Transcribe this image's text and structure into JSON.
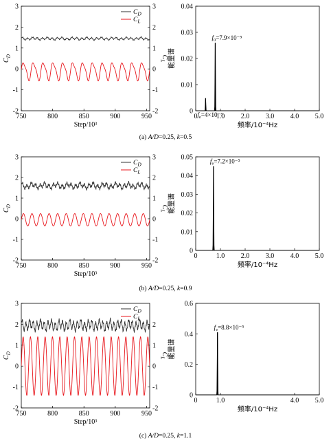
{
  "chart_data": [
    {
      "panel": "a",
      "caption": "(a) A/D=0.25, k=0.5",
      "time_plot": {
        "type": "line",
        "xlabel": "Step/10³",
        "ylabel_left": "C_D",
        "ylabel_right": "C_L",
        "xlim": [
          750,
          955
        ],
        "ylim": [
          -2,
          3
        ],
        "xticks": [
          "750",
          "800",
          "850",
          "900",
          "950"
        ],
        "yticks_left": [
          "-2",
          "-1",
          "0",
          "1",
          "2",
          "3"
        ],
        "yticks_right": [
          "-2",
          "-1",
          "0",
          "1",
          "2",
          "3"
        ],
        "legend": "top-right",
        "series": [
          {
            "name": "C_D",
            "color": "#333333",
            "mean": 1.45,
            "amplitude": 0.05,
            "periods": 26,
            "noise": 0.03
          },
          {
            "name": "C_L",
            "color": "#e8151b",
            "mean": -0.1,
            "amplitude": 0.4,
            "periods": 13,
            "second_amp": 0.1
          }
        ]
      },
      "spectrum": {
        "type": "line",
        "xlabel": "频率/10⁻⁴Hz",
        "ylabel": "能量谱",
        "xlim": [
          0,
          5
        ],
        "ylim": [
          0,
          0.04
        ],
        "xticks": [
          "0",
          "1.0",
          "2.0",
          "3.0",
          "4.0",
          "5.0"
        ],
        "yticks": [
          "0",
          "0.01",
          "0.02",
          "0.03",
          "0.04"
        ],
        "peaks": [
          {
            "x": 0.4,
            "y": 0.0048
          },
          {
            "x": 0.79,
            "y": 0.026
          }
        ],
        "annotations": [
          {
            "sub": "0",
            "text": "=7.9×10⁻⁵",
            "x": 0.79,
            "y": 0.026
          },
          {
            "sub": "e",
            "text": "=4×10⁻⁵",
            "x": 0.4,
            "y": 0.0
          }
        ],
        "color": "#000000"
      }
    },
    {
      "panel": "b",
      "caption": "(b) A/D=0.25, k=0.9",
      "time_plot": {
        "type": "line",
        "xlabel": "Step/10³",
        "ylabel_left": "C_D",
        "ylabel_right": "C_L",
        "xlim": [
          750,
          955
        ],
        "ylim": [
          -2,
          3
        ],
        "xticks": [
          "750",
          "800",
          "850",
          "900",
          "950"
        ],
        "yticks_left": [
          "-2",
          "-1",
          "0",
          "1",
          "2",
          "3"
        ],
        "yticks_right": [
          "-2",
          "-1",
          "0",
          "1",
          "2",
          "3"
        ],
        "legend": "top-right",
        "series": [
          {
            "name": "C_D",
            "color": "#333333",
            "mean": 1.6,
            "amplitude": 0.1,
            "periods": 29,
            "noise": 0.08
          },
          {
            "name": "C_L",
            "color": "#e8151b",
            "mean": -0.05,
            "amplitude": 0.3,
            "periods": 15,
            "second_amp": 0.0
          }
        ]
      },
      "spectrum": {
        "type": "line",
        "xlabel": "频率/10⁻⁴Hz",
        "ylabel": "能量谱",
        "xlim": [
          0,
          5
        ],
        "ylim": [
          0,
          0.05
        ],
        "xticks": [
          "0",
          "1.0",
          "2.0",
          "3.0",
          "4.0",
          "5.0"
        ],
        "yticks": [
          "0",
          "0.01",
          "0.02",
          "0.03",
          "0.04",
          "0.05"
        ],
        "peaks": [
          {
            "x": 0.72,
            "y": 0.045
          }
        ],
        "annotations": [
          {
            "sub": "e",
            "text": "=7.2×10⁻⁵",
            "x": 0.72,
            "y": 0.045
          }
        ],
        "color": "#000000"
      }
    },
    {
      "panel": "c",
      "caption": "(c) A/D=0.25, k=1.1",
      "time_plot": {
        "type": "line",
        "xlabel": "Step/10³",
        "ylabel_left": "C_D",
        "ylabel_right": "C_L",
        "xlim": [
          750,
          955
        ],
        "ylim": [
          -2,
          3
        ],
        "xticks": [
          "750",
          "800",
          "850",
          "900",
          "950"
        ],
        "yticks_left": [
          "-2",
          "-1",
          "0",
          "1",
          "2",
          "3"
        ],
        "yticks_right": [
          "-2",
          "-1",
          "0",
          "1",
          "2"
        ],
        "legend": "top-right",
        "series": [
          {
            "name": "C_D",
            "color": "#333333",
            "mean": 1.95,
            "amplitude": 0.2,
            "periods": 35,
            "noise": 0.1
          },
          {
            "name": "C_L",
            "color": "#e8151b",
            "mean": 0.0,
            "amplitude": 1.4,
            "periods": 17.5,
            "second_amp": 0.0
          }
        ]
      },
      "spectrum": {
        "type": "line",
        "xlabel": "频率/10⁻⁴Hz",
        "ylabel": "能量谱",
        "xlim": [
          0,
          5
        ],
        "ylim": [
          0,
          0.6
        ],
        "xticks": [
          "0",
          "1.0",
          "4.0",
          "5.0"
        ],
        "xtick_values": [
          0,
          1,
          4,
          5
        ],
        "yticks": [
          "0",
          "0.2",
          "0.4",
          "0.6"
        ],
        "peaks": [
          {
            "x": 0.88,
            "y": 0.41
          }
        ],
        "annotations": [
          {
            "sub": "e",
            "text": "=8.8×10⁻⁵",
            "x": 0.88,
            "y": 0.41
          }
        ],
        "color": "#000000"
      }
    }
  ]
}
